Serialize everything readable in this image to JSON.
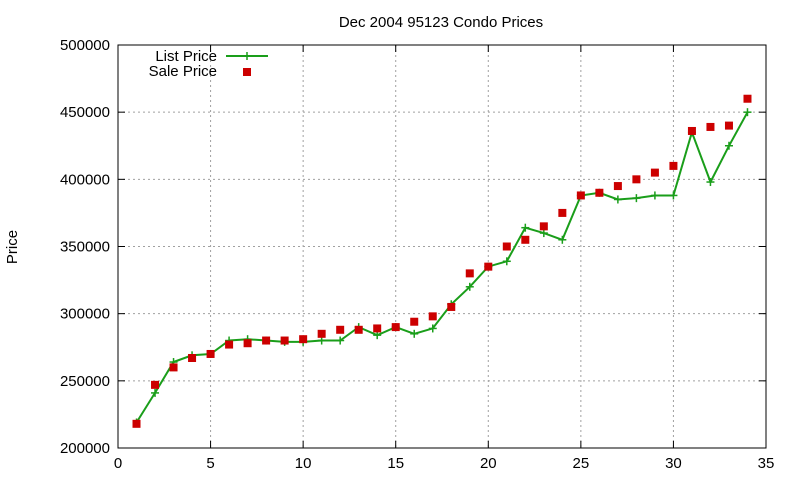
{
  "chart_data": {
    "type": "line",
    "title": "Dec 2004 95123 Condo Prices",
    "xlabel": "",
    "ylabel": "Price",
    "xlim": [
      0,
      35
    ],
    "ylim": [
      200000,
      500000
    ],
    "x_ticks": [
      0,
      5,
      10,
      15,
      20,
      25,
      30,
      35
    ],
    "y_ticks": [
      200000,
      250000,
      300000,
      350000,
      400000,
      450000,
      500000
    ],
    "grid": true,
    "legend_position": "top-left",
    "series": [
      {
        "name": "List Price",
        "type": "line",
        "marker": "plus",
        "color": "#1a9e1a",
        "x": [
          1,
          2,
          3,
          4,
          5,
          6,
          7,
          8,
          9,
          10,
          11,
          12,
          13,
          14,
          15,
          16,
          17,
          18,
          19,
          20,
          21,
          22,
          23,
          24,
          25,
          26,
          27,
          28,
          29,
          30,
          31,
          32,
          33,
          34
        ],
        "values": [
          219000,
          241000,
          264000,
          269000,
          270000,
          280000,
          281000,
          280000,
          279000,
          279000,
          280000,
          280000,
          290000,
          284000,
          290000,
          285000,
          289000,
          307000,
          320000,
          335000,
          339000,
          364000,
          360000,
          355000,
          388000,
          390000,
          385000,
          386000,
          388000,
          388000,
          435000,
          398000,
          425000,
          450000
        ]
      },
      {
        "name": "Sale Price",
        "type": "scatter",
        "marker": "square",
        "color": "#cc0000",
        "x": [
          1,
          2,
          3,
          4,
          5,
          6,
          7,
          8,
          9,
          10,
          11,
          12,
          13,
          14,
          15,
          16,
          17,
          18,
          19,
          20,
          21,
          22,
          23,
          24,
          25,
          26,
          27,
          28,
          29,
          30,
          31,
          32,
          33,
          34
        ],
        "values": [
          218000,
          247000,
          260000,
          267000,
          270000,
          277000,
          278000,
          280000,
          280000,
          281000,
          285000,
          288000,
          288000,
          289000,
          290000,
          294000,
          298000,
          305000,
          330000,
          335000,
          350000,
          355000,
          365000,
          375000,
          388000,
          390000,
          395000,
          400000,
          405000,
          410000,
          436000,
          439000,
          440000,
          460000
        ]
      }
    ]
  }
}
